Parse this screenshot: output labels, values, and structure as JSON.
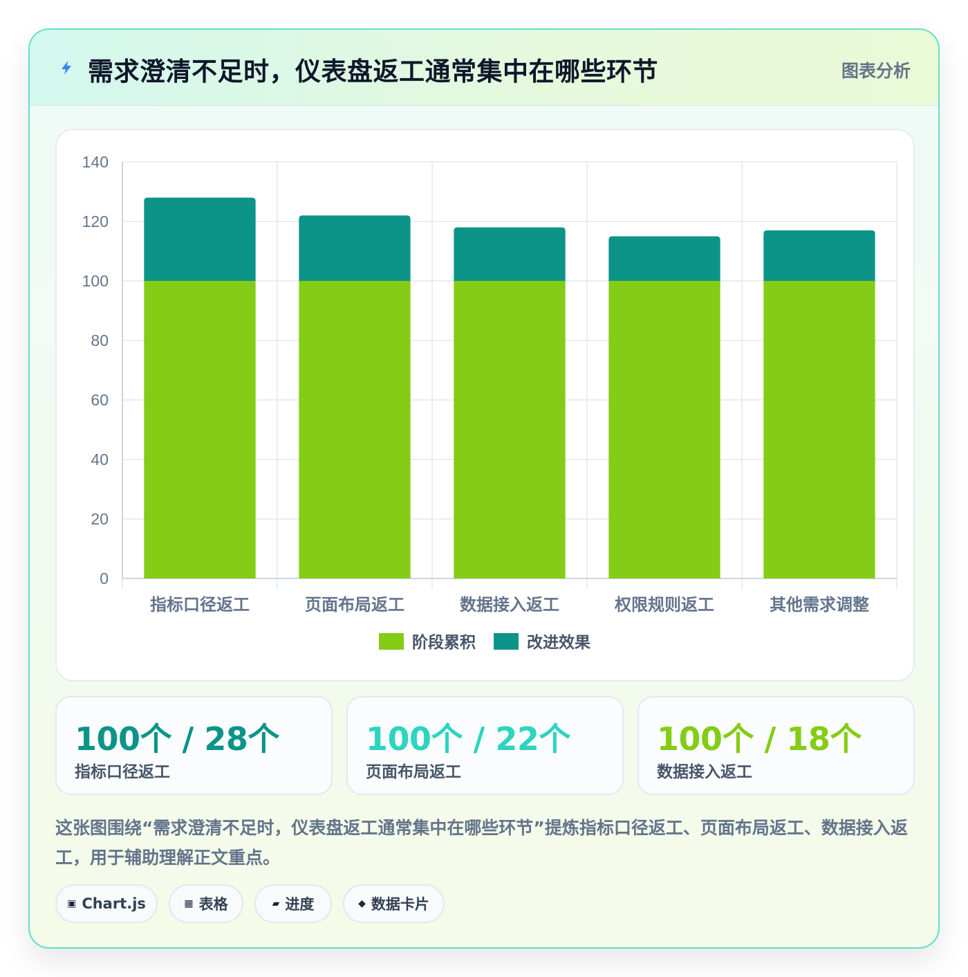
{
  "header": {
    "title": "需求澄清不足时，仪表盘返工通常集中在哪些环节",
    "tag": "图表分析",
    "icon": "lightning-bolt-icon"
  },
  "chart_data": {
    "type": "bar",
    "stacked": true,
    "categories": [
      "指标口径返工",
      "页面布局返工",
      "数据接入返工",
      "权限规则返工",
      "其他需求调整"
    ],
    "series": [
      {
        "name": "阶段累积",
        "values": [
          100,
          100,
          100,
          100,
          100
        ],
        "color": "#84cc16"
      },
      {
        "name": "改进效果",
        "values": [
          28,
          22,
          18,
          15,
          17
        ],
        "color": "#0d9488"
      }
    ],
    "ylim": [
      0,
      140
    ],
    "yticks": [
      0,
      20,
      40,
      60,
      80,
      100,
      120,
      140
    ],
    "grid": true,
    "legend_position": "bottom"
  },
  "stats": [
    {
      "value": "100个 / 28个",
      "label": "指标口径返工",
      "color": "#0d9488"
    },
    {
      "value": "100个 / 22个",
      "label": "页面布局返工",
      "color": "#2dd4bf"
    },
    {
      "value": "100个 / 18个",
      "label": "数据接入返工",
      "color": "#84cc16"
    }
  ],
  "summary": "这张图围绕“需求澄清不足时，仪表盘返工通常集中在哪些环节”提炼指标口径返工、页面布局返工、数据接入返工，用于辅助理解正文重点。",
  "chips": [
    {
      "icon": "▣",
      "label": "Chart.js"
    },
    {
      "icon": "▦",
      "label": "表格"
    },
    {
      "icon": "▰",
      "label": "进度"
    },
    {
      "icon": "◆",
      "label": "数据卡片"
    }
  ]
}
